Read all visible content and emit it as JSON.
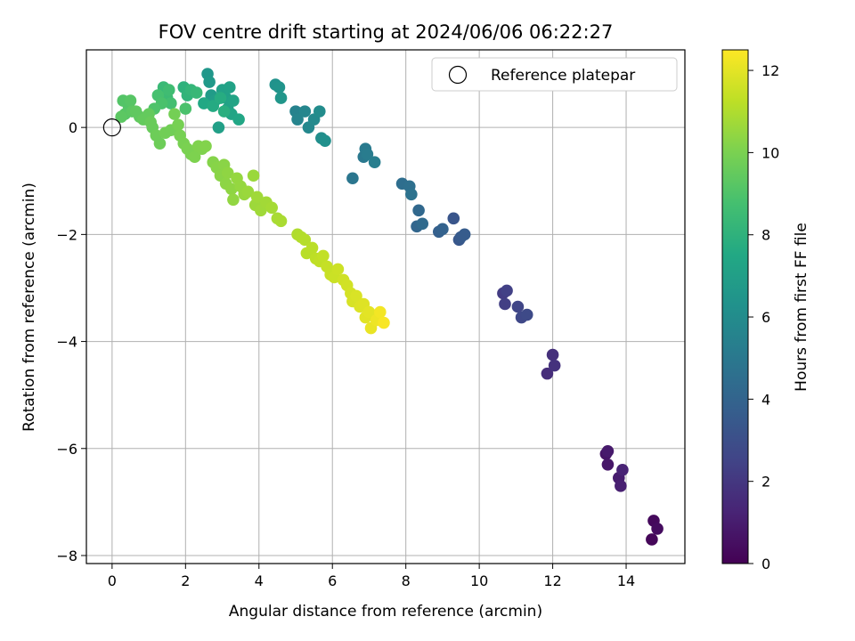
{
  "chart_data": {
    "type": "scatter",
    "title": "FOV centre drift starting at 2024/06/06 06:22:27",
    "xlabel": "Angular distance from reference (arcmin)",
    "ylabel": "Rotation from reference (arcmin)",
    "colorbar_label": "Hours from first FF file",
    "xlim": [
      -0.7,
      15.6
    ],
    "ylim": [
      -8.15,
      1.45
    ],
    "clim": [
      0,
      12.5
    ],
    "x_ticks": [
      0,
      2,
      4,
      6,
      8,
      10,
      12,
      14
    ],
    "y_ticks": [
      -8,
      -6,
      -4,
      -2,
      0
    ],
    "colorbar_ticks": [
      0,
      2,
      4,
      6,
      8,
      10,
      12
    ],
    "grid": true,
    "colormap": "viridis",
    "legend": {
      "location": "top-right",
      "entries": [
        "Reference platepar"
      ]
    },
    "reference_point": {
      "x": 0,
      "y": 0
    },
    "points": [
      [
        14.7,
        -7.7,
        0.2
      ],
      [
        14.75,
        -7.35,
        0.3
      ],
      [
        14.85,
        -7.5,
        0.4
      ],
      [
        13.45,
        -6.1,
        0.7
      ],
      [
        13.5,
        -6.3,
        0.8
      ],
      [
        13.5,
        -6.05,
        0.9
      ],
      [
        13.8,
        -6.55,
        1.0
      ],
      [
        13.85,
        -6.7,
        1.1
      ],
      [
        13.9,
        -6.4,
        1.2
      ],
      [
        11.85,
        -4.6,
        1.6
      ],
      [
        12.0,
        -4.25,
        1.7
      ],
      [
        12.05,
        -4.45,
        1.8
      ],
      [
        10.65,
        -3.1,
        2.2
      ],
      [
        10.7,
        -3.3,
        2.3
      ],
      [
        10.75,
        -3.05,
        2.4
      ],
      [
        11.05,
        -3.35,
        2.6
      ],
      [
        11.15,
        -3.55,
        2.7
      ],
      [
        11.3,
        -3.5,
        2.8
      ],
      [
        9.3,
        -1.7,
        3.3
      ],
      [
        9.45,
        -2.1,
        3.4
      ],
      [
        9.5,
        -2.05,
        3.5
      ],
      [
        9.6,
        -2.0,
        3.6
      ],
      [
        8.9,
        -1.95,
        3.8
      ],
      [
        9.0,
        -1.9,
        3.9
      ],
      [
        8.3,
        -1.85,
        4.1
      ],
      [
        8.35,
        -1.55,
        4.2
      ],
      [
        8.45,
        -1.8,
        4.3
      ],
      [
        7.9,
        -1.05,
        4.5
      ],
      [
        8.1,
        -1.1,
        4.6
      ],
      [
        8.15,
        -1.25,
        4.7
      ],
      [
        6.55,
        -0.95,
        4.9
      ],
      [
        6.85,
        -0.55,
        5.0
      ],
      [
        6.9,
        -0.4,
        5.1
      ],
      [
        6.95,
        -0.5,
        5.2
      ],
      [
        7.15,
        -0.65,
        5.3
      ],
      [
        5.0,
        0.3,
        5.5
      ],
      [
        5.05,
        0.15,
        5.6
      ],
      [
        5.25,
        0.3,
        5.7
      ],
      [
        5.35,
        0.0,
        5.8
      ],
      [
        5.5,
        0.15,
        5.9
      ],
      [
        5.65,
        0.3,
        6.0
      ],
      [
        5.7,
        -0.2,
        6.1
      ],
      [
        5.8,
        -0.25,
        6.2
      ],
      [
        4.45,
        0.8,
        6.3
      ],
      [
        4.55,
        0.75,
        6.4
      ],
      [
        4.6,
        0.55,
        6.5
      ],
      [
        2.6,
        1.0,
        6.6
      ],
      [
        2.65,
        0.85,
        6.7
      ],
      [
        2.7,
        0.6,
        6.8
      ],
      [
        2.8,
        0.5,
        6.9
      ],
      [
        2.9,
        0.0,
        7.0
      ],
      [
        3.0,
        0.7,
        7.1
      ],
      [
        3.1,
        0.55,
        7.1
      ],
      [
        3.15,
        0.35,
        7.2
      ],
      [
        3.2,
        0.75,
        7.2
      ],
      [
        3.25,
        0.25,
        7.3
      ],
      [
        3.3,
        0.5,
        7.3
      ],
      [
        3.45,
        0.15,
        7.4
      ],
      [
        2.5,
        0.45,
        7.5
      ],
      [
        2.75,
        0.4,
        7.6
      ],
      [
        2.95,
        0.55,
        7.7
      ],
      [
        3.05,
        0.3,
        7.8
      ],
      [
        1.95,
        0.75,
        8.0
      ],
      [
        2.05,
        0.6,
        8.1
      ],
      [
        2.15,
        0.7,
        8.2
      ],
      [
        2.3,
        0.65,
        8.3
      ],
      [
        1.4,
        0.75,
        8.4
      ],
      [
        1.5,
        0.55,
        8.5
      ],
      [
        1.55,
        0.7,
        8.6
      ],
      [
        1.6,
        0.45,
        8.7
      ],
      [
        1.25,
        0.6,
        8.8
      ],
      [
        1.35,
        0.45,
        8.9
      ],
      [
        2.0,
        0.35,
        8.9
      ],
      [
        1.15,
        0.35,
        9.0
      ],
      [
        0.3,
        0.5,
        9.1
      ],
      [
        0.45,
        0.4,
        9.1
      ],
      [
        0.5,
        0.5,
        9.2
      ],
      [
        0.35,
        0.25,
        9.2
      ],
      [
        0.55,
        0.3,
        9.3
      ],
      [
        0.25,
        0.2,
        9.3
      ],
      [
        0.65,
        0.3,
        9.4
      ],
      [
        0.75,
        0.2,
        9.4
      ],
      [
        0.85,
        0.15,
        9.5
      ],
      [
        1.0,
        0.25,
        9.5
      ],
      [
        1.05,
        0.1,
        9.6
      ],
      [
        1.1,
        0.0,
        9.6
      ],
      [
        1.2,
        -0.15,
        9.7
      ],
      [
        1.3,
        -0.3,
        9.7
      ],
      [
        1.45,
        -0.1,
        9.8
      ],
      [
        1.6,
        -0.05,
        9.8
      ],
      [
        1.7,
        0.25,
        9.85
      ],
      [
        1.8,
        0.05,
        9.9
      ],
      [
        1.85,
        -0.15,
        9.9
      ],
      [
        1.95,
        -0.3,
        9.95
      ],
      [
        2.05,
        -0.4,
        10.0
      ],
      [
        2.15,
        -0.5,
        10.0
      ],
      [
        2.25,
        -0.55,
        10.05
      ],
      [
        2.35,
        -0.35,
        10.1
      ],
      [
        2.45,
        -0.4,
        10.1
      ],
      [
        2.55,
        -0.35,
        10.15
      ],
      [
        2.75,
        -0.65,
        10.2
      ],
      [
        2.85,
        -0.75,
        10.25
      ],
      [
        2.95,
        -0.9,
        10.3
      ],
      [
        3.05,
        -0.7,
        10.3
      ],
      [
        3.1,
        -1.05,
        10.35
      ],
      [
        3.15,
        -0.85,
        10.4
      ],
      [
        3.25,
        -1.15,
        10.4
      ],
      [
        3.3,
        -1.35,
        10.45
      ],
      [
        3.4,
        -0.95,
        10.5
      ],
      [
        3.5,
        -1.1,
        10.5
      ],
      [
        3.6,
        -1.25,
        10.55
      ],
      [
        3.7,
        -1.2,
        10.6
      ],
      [
        3.85,
        -0.9,
        10.6
      ],
      [
        3.9,
        -1.45,
        10.65
      ],
      [
        3.95,
        -1.3,
        10.7
      ],
      [
        4.05,
        -1.55,
        10.7
      ],
      [
        4.2,
        -1.4,
        10.75
      ],
      [
        4.35,
        -1.5,
        10.8
      ],
      [
        4.5,
        -1.7,
        10.85
      ],
      [
        4.6,
        -1.75,
        10.9
      ],
      [
        5.05,
        -2.0,
        11.0
      ],
      [
        5.15,
        -2.05,
        11.05
      ],
      [
        5.25,
        -2.1,
        11.1
      ],
      [
        5.3,
        -2.35,
        11.15
      ],
      [
        5.45,
        -2.25,
        11.2
      ],
      [
        5.55,
        -2.45,
        11.25
      ],
      [
        5.65,
        -2.5,
        11.3
      ],
      [
        5.75,
        -2.4,
        11.35
      ],
      [
        5.85,
        -2.6,
        11.4
      ],
      [
        5.95,
        -2.75,
        11.45
      ],
      [
        6.05,
        -2.8,
        11.5
      ],
      [
        6.15,
        -2.65,
        11.55
      ],
      [
        6.3,
        -2.85,
        11.6
      ],
      [
        6.4,
        -2.95,
        11.65
      ],
      [
        6.5,
        -3.1,
        11.7
      ],
      [
        6.55,
        -3.25,
        11.75
      ],
      [
        6.65,
        -3.15,
        11.8
      ],
      [
        6.75,
        -3.35,
        11.85
      ],
      [
        6.85,
        -3.3,
        11.9
      ],
      [
        6.9,
        -3.55,
        11.95
      ],
      [
        7.0,
        -3.45,
        12.0
      ],
      [
        7.05,
        -3.75,
        12.1
      ],
      [
        7.2,
        -3.6,
        12.2
      ],
      [
        7.3,
        -3.45,
        12.3
      ],
      [
        7.4,
        -3.65,
        12.4
      ]
    ]
  }
}
